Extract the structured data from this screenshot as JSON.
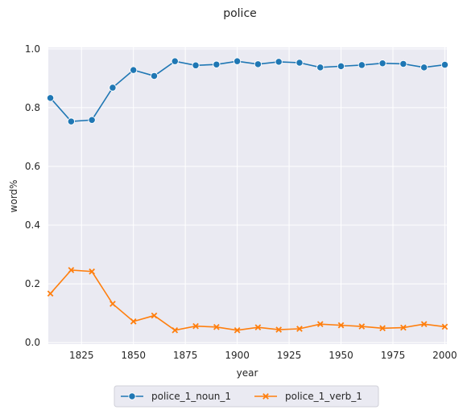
{
  "chart_data": {
    "type": "line",
    "title": "police",
    "xlabel": "year",
    "ylabel": "word%",
    "xlim": [
      1809,
      2001
    ],
    "ylim": [
      -0.005,
      1.005
    ],
    "xticks": [
      1825,
      1850,
      1875,
      1900,
      1925,
      1950,
      1975,
      2000
    ],
    "yticks": [
      0.0,
      0.2,
      0.4,
      0.6,
      0.8,
      1.0
    ],
    "xtick_labels": [
      "1825",
      "1850",
      "1875",
      "1900",
      "1925",
      "1950",
      "1975",
      "2000"
    ],
    "ytick_labels": [
      "0.0",
      "0.2",
      "0.4",
      "0.6",
      "0.8",
      "1.0"
    ],
    "grid": true,
    "legend_position": "bottom-center",
    "x": [
      1810,
      1820,
      1830,
      1840,
      1850,
      1860,
      1870,
      1880,
      1890,
      1900,
      1910,
      1920,
      1930,
      1940,
      1950,
      1960,
      1970,
      1980,
      1990,
      2000
    ],
    "series": [
      {
        "name": "police_1_noun_1",
        "color": "#1f77b4",
        "marker": "circle",
        "values": [
          0.833,
          0.753,
          0.758,
          0.868,
          0.928,
          0.908,
          0.958,
          0.944,
          0.947,
          0.958,
          0.948,
          0.956,
          0.953,
          0.937,
          0.941,
          0.945,
          0.951,
          0.949,
          0.937,
          0.946
        ]
      },
      {
        "name": "police_1_verb_1",
        "color": "#ff7f0e",
        "marker": "x",
        "values": [
          0.167,
          0.247,
          0.242,
          0.132,
          0.072,
          0.092,
          0.042,
          0.056,
          0.053,
          0.042,
          0.052,
          0.044,
          0.047,
          0.063,
          0.059,
          0.055,
          0.049,
          0.051,
          0.063,
          0.054
        ]
      }
    ]
  }
}
